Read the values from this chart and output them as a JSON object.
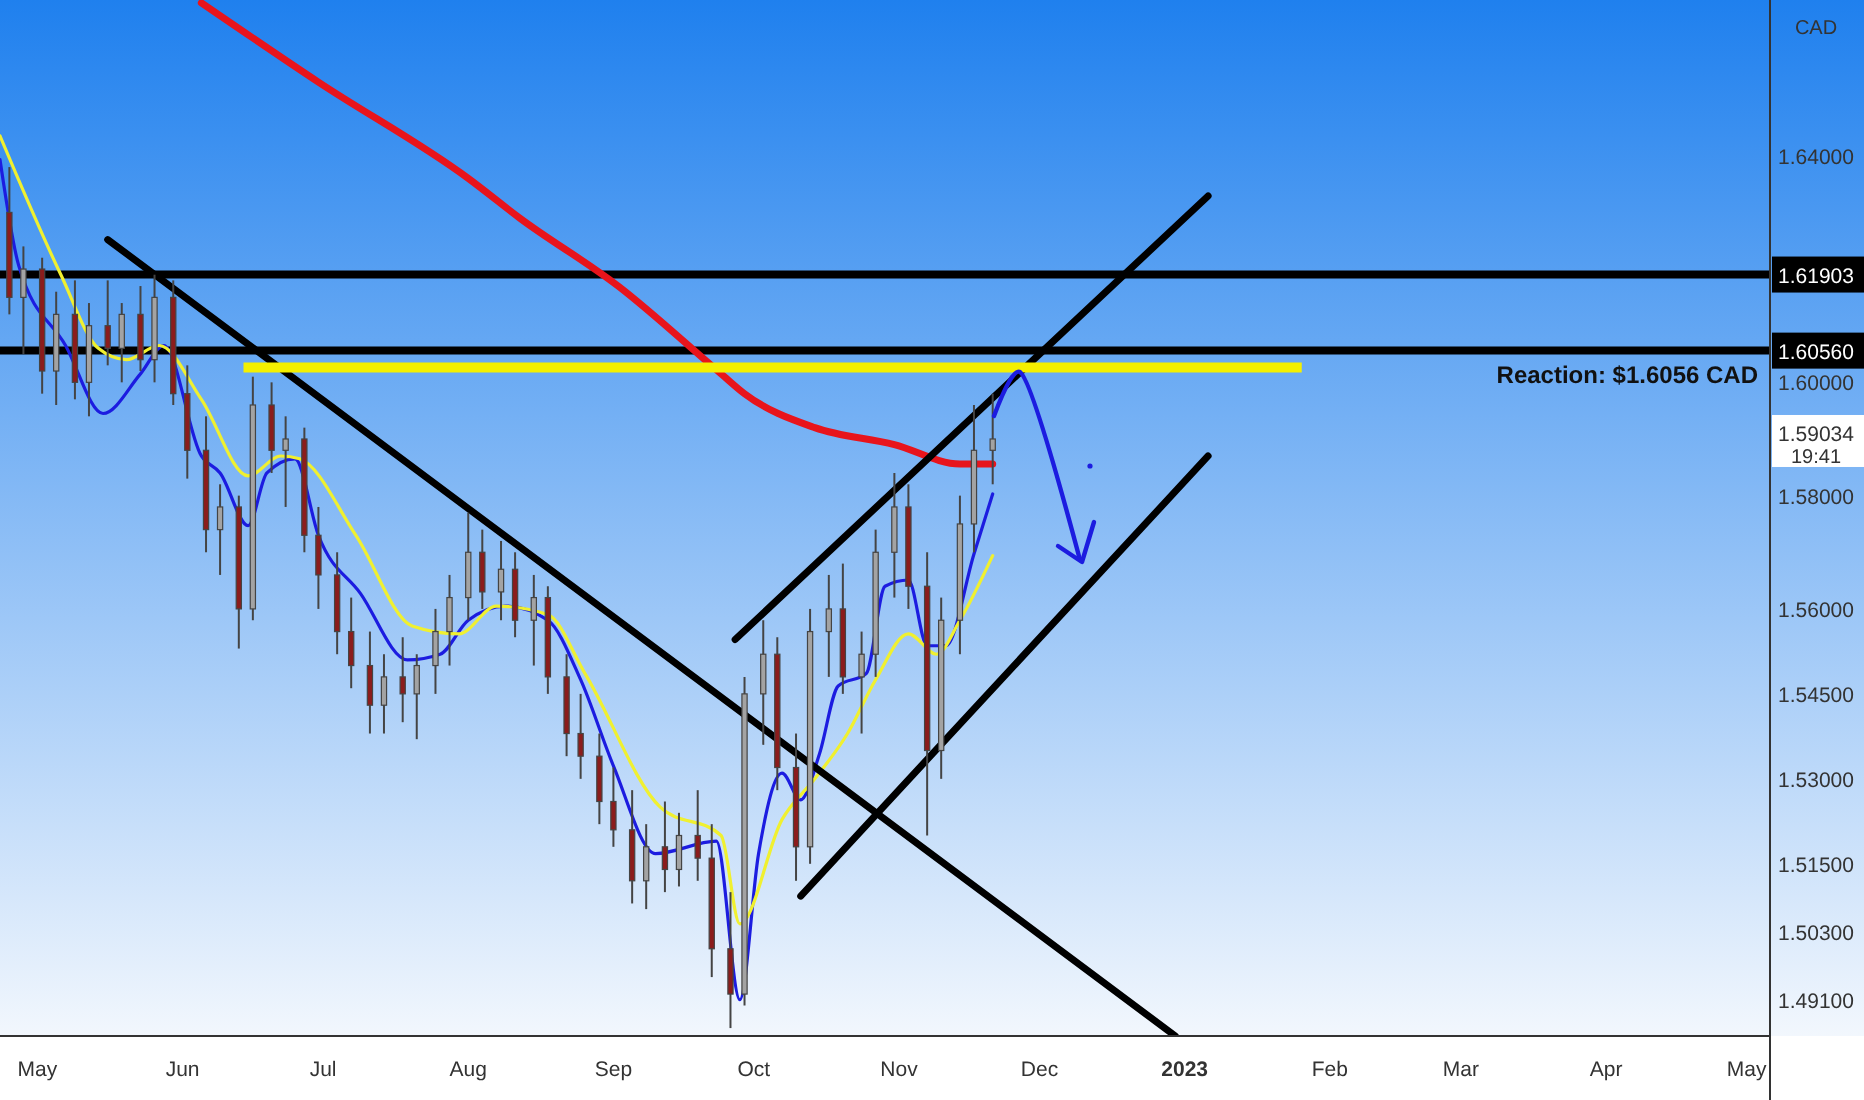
{
  "chart_data": {
    "type": "candlestick",
    "ylabel": "CAD",
    "x": [
      "2022-04-25",
      "2022-04-28",
      "2022-05-02",
      "2022-05-05",
      "2022-05-09",
      "2022-05-12",
      "2022-05-16",
      "2022-05-19",
      "2022-05-23",
      "2022-05-26",
      "2022-05-30",
      "2022-06-02",
      "2022-06-06",
      "2022-06-09",
      "2022-06-13",
      "2022-06-16",
      "2022-06-20",
      "2022-06-23",
      "2022-06-27",
      "2022-06-30",
      "2022-07-04",
      "2022-07-07",
      "2022-07-11",
      "2022-07-14",
      "2022-07-18",
      "2022-07-21",
      "2022-07-25",
      "2022-07-28",
      "2022-08-01",
      "2022-08-04",
      "2022-08-08",
      "2022-08-11",
      "2022-08-15",
      "2022-08-18",
      "2022-08-22",
      "2022-08-25",
      "2022-08-29",
      "2022-09-01",
      "2022-09-05",
      "2022-09-08",
      "2022-09-12",
      "2022-09-15",
      "2022-09-19",
      "2022-09-22",
      "2022-09-26",
      "2022-09-29",
      "2022-10-03",
      "2022-10-06",
      "2022-10-10",
      "2022-10-13",
      "2022-10-17",
      "2022-10-20",
      "2022-10-24",
      "2022-10-27",
      "2022-10-31",
      "2022-11-03",
      "2022-11-07",
      "2022-11-10",
      "2022-11-14",
      "2022-11-17",
      "2022-11-21"
    ],
    "ohlc": [
      [
        1.63,
        1.638,
        1.612,
        1.615
      ],
      [
        1.615,
        1.624,
        1.605,
        1.62
      ],
      [
        1.62,
        1.622,
        1.598,
        1.602
      ],
      [
        1.602,
        1.616,
        1.596,
        1.612
      ],
      [
        1.612,
        1.618,
        1.597,
        1.6
      ],
      [
        1.6,
        1.614,
        1.594,
        1.61
      ],
      [
        1.61,
        1.618,
        1.603,
        1.606
      ],
      [
        1.606,
        1.614,
        1.6,
        1.612
      ],
      [
        1.612,
        1.617,
        1.602,
        1.604
      ],
      [
        1.604,
        1.619,
        1.6,
        1.615
      ],
      [
        1.615,
        1.618,
        1.596,
        1.598
      ],
      [
        1.598,
        1.603,
        1.583,
        1.588
      ],
      [
        1.588,
        1.594,
        1.57,
        1.574
      ],
      [
        1.574,
        1.582,
        1.566,
        1.578
      ],
      [
        1.578,
        1.58,
        1.553,
        1.56
      ],
      [
        1.56,
        1.601,
        1.558,
        1.596
      ],
      [
        1.596,
        1.6,
        1.584,
        1.588
      ],
      [
        1.588,
        1.594,
        1.578,
        1.59
      ],
      [
        1.59,
        1.592,
        1.57,
        1.573
      ],
      [
        1.573,
        1.578,
        1.56,
        1.566
      ],
      [
        1.566,
        1.57,
        1.552,
        1.556
      ],
      [
        1.556,
        1.562,
        1.546,
        1.55
      ],
      [
        1.55,
        1.556,
        1.538,
        1.543
      ],
      [
        1.543,
        1.552,
        1.538,
        1.548
      ],
      [
        1.548,
        1.555,
        1.54,
        1.545
      ],
      [
        1.545,
        1.552,
        1.537,
        1.55
      ],
      [
        1.55,
        1.56,
        1.545,
        1.556
      ],
      [
        1.556,
        1.566,
        1.55,
        1.562
      ],
      [
        1.562,
        1.577,
        1.558,
        1.57
      ],
      [
        1.57,
        1.574,
        1.56,
        1.563
      ],
      [
        1.563,
        1.572,
        1.558,
        1.567
      ],
      [
        1.567,
        1.57,
        1.555,
        1.558
      ],
      [
        1.558,
        1.566,
        1.55,
        1.562
      ],
      [
        1.562,
        1.564,
        1.545,
        1.548
      ],
      [
        1.548,
        1.552,
        1.534,
        1.538
      ],
      [
        1.538,
        1.545,
        1.53,
        1.534
      ],
      [
        1.534,
        1.538,
        1.522,
        1.526
      ],
      [
        1.526,
        1.532,
        1.518,
        1.521
      ],
      [
        1.521,
        1.528,
        1.508,
        1.512
      ],
      [
        1.512,
        1.522,
        1.507,
        1.518
      ],
      [
        1.518,
        1.526,
        1.51,
        1.514
      ],
      [
        1.514,
        1.524,
        1.511,
        1.52
      ],
      [
        1.52,
        1.528,
        1.512,
        1.516
      ],
      [
        1.516,
        1.522,
        1.495,
        1.5
      ],
      [
        1.5,
        1.51,
        1.486,
        1.492
      ],
      [
        1.492,
        1.548,
        1.49,
        1.545
      ],
      [
        1.545,
        1.558,
        1.536,
        1.552
      ],
      [
        1.552,
        1.555,
        1.528,
        1.532
      ],
      [
        1.532,
        1.538,
        1.512,
        1.518
      ],
      [
        1.518,
        1.56,
        1.515,
        1.556
      ],
      [
        1.556,
        1.566,
        1.548,
        1.56
      ],
      [
        1.56,
        1.568,
        1.545,
        1.548
      ],
      [
        1.548,
        1.556,
        1.538,
        1.552
      ],
      [
        1.552,
        1.574,
        1.548,
        1.57
      ],
      [
        1.57,
        1.584,
        1.562,
        1.578
      ],
      [
        1.578,
        1.582,
        1.56,
        1.564
      ],
      [
        1.564,
        1.57,
        1.52,
        1.535
      ],
      [
        1.535,
        1.562,
        1.53,
        1.558
      ],
      [
        1.558,
        1.58,
        1.552,
        1.575
      ],
      [
        1.575,
        1.596,
        1.57,
        1.588
      ],
      [
        1.588,
        1.598,
        1.582,
        1.59
      ]
    ],
    "colors": [
      "#8b1c1c",
      "#a3a3a3",
      "#8b1c1c",
      "#a3a3a3",
      "#8b1c1c",
      "#a3a3a3",
      "#8b1c1c",
      "#a3a3a3",
      "#8b1c1c",
      "#a3a3a3",
      "#8b1c1c",
      "#8b1c1c",
      "#8b1c1c",
      "#a3a3a3",
      "#8b1c1c",
      "#a3a3a3",
      "#8b1c1c",
      "#a3a3a3",
      "#8b1c1c",
      "#8b1c1c",
      "#8b1c1c",
      "#8b1c1c",
      "#8b1c1c",
      "#a3a3a3",
      "#8b1c1c",
      "#a3a3a3",
      "#a3a3a3",
      "#a3a3a3",
      "#a3a3a3",
      "#8b1c1c",
      "#a3a3a3",
      "#8b1c1c",
      "#a3a3a3",
      "#8b1c1c",
      "#8b1c1c",
      "#8b1c1c",
      "#8b1c1c",
      "#8b1c1c",
      "#8b1c1c",
      "#a3a3a3",
      "#8b1c1c",
      "#a3a3a3",
      "#8b1c1c",
      "#8b1c1c",
      "#8b1c1c",
      "#a3a3a3",
      "#a3a3a3",
      "#8b1c1c",
      "#8b1c1c",
      "#a3a3a3",
      "#a3a3a3",
      "#8b1c1c",
      "#a3a3a3",
      "#a3a3a3",
      "#a3a3a3",
      "#8b1c1c",
      "#8b1c1c",
      "#a3a3a3",
      "#a3a3a3",
      "#a3a3a3",
      "#a3a3a3"
    ],
    "series": [
      {
        "type": "line",
        "color": "#e8141c",
        "x": [
          "2022-06-05",
          "2022-06-30",
          "2022-08-01",
          "2022-08-12",
          "2022-09-02",
          "2022-09-24",
          "2022-09-29",
          "2022-10-14",
          "2022-10-31",
          "2022-11-14",
          "2022-11-21"
        ],
        "values": [
          1.667,
          1.653,
          1.636,
          1.629,
          1.617,
          1.6015,
          1.598,
          1.592,
          1.589,
          1.5856,
          1.5856
        ]
      },
      {
        "type": "line",
        "color": "#1c1ce0",
        "x": [
          "2022-04-23",
          "2022-04-27",
          "2022-05-07",
          "2022-05-15",
          "2022-05-23",
          "2022-05-28",
          "2022-06-05",
          "2022-06-09",
          "2022-06-15",
          "2022-06-19",
          "2022-06-25",
          "2022-06-30",
          "2022-07-09",
          "2022-07-19",
          "2022-07-26",
          "2022-08-01",
          "2022-08-09",
          "2022-08-18",
          "2022-08-25",
          "2022-09-01",
          "2022-09-10",
          "2022-09-23",
          "2022-09-28",
          "2022-10-02",
          "2022-10-07",
          "2022-10-11",
          "2022-10-15",
          "2022-10-19",
          "2022-10-25",
          "2022-10-29",
          "2022-11-03",
          "2022-11-07",
          "2022-11-11",
          "2022-11-17",
          "2022-11-21"
        ],
        "values": [
          1.6393,
          1.6206,
          1.6065,
          1.5945,
          1.6015,
          1.6065,
          1.587,
          1.584,
          1.5747,
          1.584,
          1.5865,
          1.573,
          1.5627,
          1.551,
          1.552,
          1.558,
          1.5605,
          1.558,
          1.5475,
          1.5323,
          1.5168,
          1.519,
          1.491,
          1.5168,
          1.531,
          1.5263,
          1.5344,
          1.5464,
          1.5486,
          1.564,
          1.5651,
          1.5535,
          1.5535,
          1.5697,
          1.5803
        ]
      },
      {
        "type": "line",
        "color": "#f0f030",
        "x": [
          "2022-04-23",
          "2022-05-06",
          "2022-05-14",
          "2022-05-20",
          "2022-05-27",
          "2022-06-05",
          "2022-06-15",
          "2022-06-22",
          "2022-06-26",
          "2022-07-08",
          "2022-07-20",
          "2022-07-30",
          "2022-08-07",
          "2022-08-18",
          "2022-08-26",
          "2022-09-11",
          "2022-09-24",
          "2022-09-28",
          "2022-10-07",
          "2022-10-14",
          "2022-10-21",
          "2022-10-27",
          "2022-11-03",
          "2022-11-09",
          "2022-11-14",
          "2022-11-21"
        ],
        "values": [
          1.6435,
          1.619,
          1.606,
          1.604,
          1.6065,
          1.597,
          1.5835,
          1.587,
          1.5865,
          1.573,
          1.557,
          1.5556,
          1.5605,
          1.559,
          1.5485,
          1.525,
          1.52,
          1.5044,
          1.5228,
          1.53,
          1.538,
          1.5475,
          1.5556,
          1.552,
          1.558,
          1.5694
        ]
      },
      {
        "type": "line",
        "color": "#000000",
        "x": [
          "2022-05-16",
          "2022-12-30"
        ],
        "values": [
          1.6252,
          1.4846
        ]
      },
      {
        "type": "line",
        "color": "#000000",
        "x": [
          "2022-09-27",
          "2023-01-06"
        ],
        "values": [
          1.5546,
          1.6329
        ]
      },
      {
        "type": "line",
        "color": "#000000",
        "x": [
          "2022-10-11",
          "2023-01-06"
        ],
        "values": [
          1.5093,
          1.587
        ]
      },
      {
        "type": "line",
        "color": "#f4f000",
        "x": [
          "2022-06-14",
          "2023-01-26"
        ],
        "values": [
          1.6026,
          1.6026
        ]
      }
    ],
    "xlim": [
      "2022-04-23",
      "2023-05-06"
    ],
    "xticks": [
      {
        "value": "2022-05-01",
        "label": "May"
      },
      {
        "value": "2022-06-01",
        "label": "Jun"
      },
      {
        "value": "2022-07-01",
        "label": "Jul"
      },
      {
        "value": "2022-08-01",
        "label": "Aug"
      },
      {
        "value": "2022-09-01",
        "label": "Sep"
      },
      {
        "value": "2022-10-01",
        "label": "Oct"
      },
      {
        "value": "2022-11-01",
        "label": "Nov"
      },
      {
        "value": "2022-12-01",
        "label": "Dec"
      },
      {
        "value": "2023-01-01",
        "label": "2023"
      },
      {
        "value": "2023-02-01",
        "label": "Feb"
      },
      {
        "value": "2023-03-01",
        "label": "Mar"
      },
      {
        "value": "2023-04-01",
        "label": "Apr"
      },
      {
        "value": "2023-05-01",
        "label": "May"
      }
    ],
    "ylim": [
      1.4846,
      1.6675
    ],
    "yticks": [
      {
        "value": 1.491,
        "label": "1.49100"
      },
      {
        "value": 1.503,
        "label": "1.50300"
      },
      {
        "value": 1.515,
        "label": "1.51500"
      },
      {
        "value": 1.53,
        "label": "1.53000"
      },
      {
        "value": 1.545,
        "label": "1.54500"
      },
      {
        "value": 1.56,
        "label": "1.56000"
      },
      {
        "value": 1.58,
        "label": "1.58000"
      },
      {
        "value": 1.6,
        "label": "1.60000"
      },
      {
        "value": 1.64,
        "label": "1.64000"
      }
    ],
    "ref_lines": [
      {
        "axis": "y",
        "value": 1.61903,
        "label": "1.61903",
        "color": "#000000"
      },
      {
        "axis": "y",
        "value": 1.6056,
        "label": "1.60560",
        "color": "#000000"
      }
    ],
    "annotations": [
      "Reaction: $1.6056 CAD",
      "1.59034",
      "19:41"
    ]
  }
}
